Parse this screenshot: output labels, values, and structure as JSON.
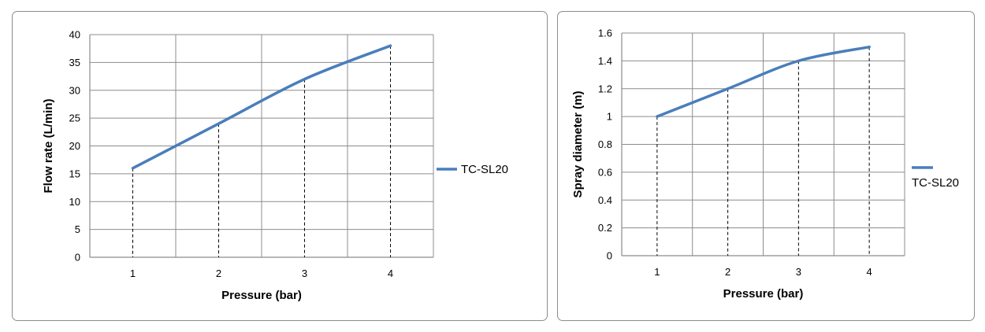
{
  "colors": {
    "series": "#4a7ebb",
    "grid": "#8c8c8c",
    "axis": "#8c8c8c",
    "dash": "#000000"
  },
  "chart_data": [
    {
      "type": "line",
      "x": [
        1,
        2,
        3,
        4
      ],
      "x_tick_labels": [
        "1",
        "2",
        "3",
        "4"
      ],
      "xlim": [
        0.5,
        4.5
      ],
      "ylim": [
        0,
        40
      ],
      "y_ticks": [
        0,
        5,
        10,
        15,
        20,
        25,
        30,
        35,
        40
      ],
      "xlabel": "Pressure (bar)",
      "ylabel": "Flow rate (L/min)",
      "series": [
        {
          "name": "TC-SL20",
          "values": [
            16,
            24,
            32,
            38
          ]
        }
      ],
      "grid": true,
      "drop_lines": true,
      "legend": "right"
    },
    {
      "type": "line",
      "x": [
        1,
        2,
        3,
        4
      ],
      "x_tick_labels": [
        "1",
        "2",
        "3",
        "4"
      ],
      "xlim": [
        0.5,
        4.5
      ],
      "ylim": [
        0,
        1.6
      ],
      "y_ticks": [
        "0",
        "0.2",
        "0.4",
        "0.6",
        "0.8",
        "1",
        "1.2",
        "1.4",
        "1.6"
      ],
      "xlabel": "Pressure (bar)",
      "ylabel": "Spray diameter (m)",
      "series": [
        {
          "name": "TC-SL20",
          "values": [
            1.0,
            1.2,
            1.4,
            1.5
          ]
        }
      ],
      "grid": true,
      "drop_lines": true,
      "legend": "right"
    }
  ]
}
